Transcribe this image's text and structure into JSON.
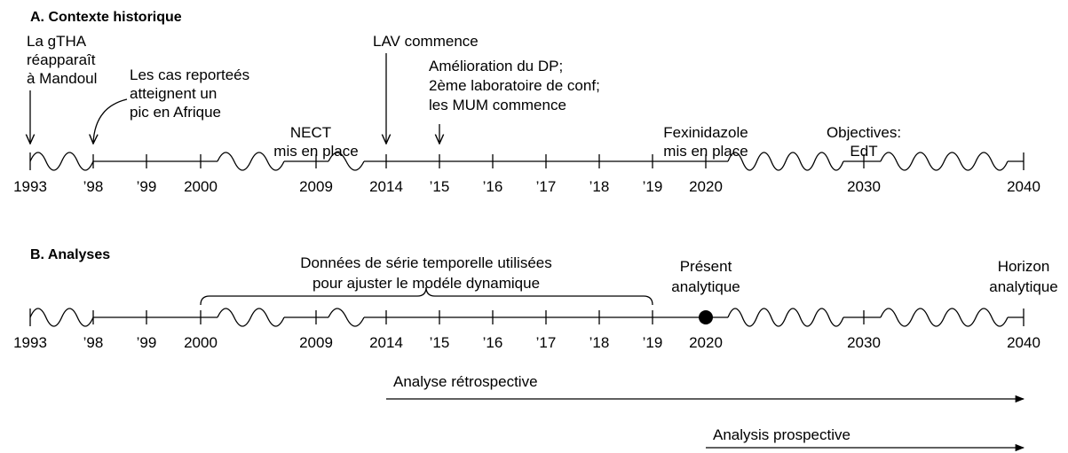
{
  "panel_a": {
    "title": "A. Contexte historique",
    "ticks": [
      "1993",
      "’98",
      "’99",
      "2000",
      "2009",
      "2014",
      "’15",
      "’16",
      "’17",
      "’18",
      "’19",
      "2020",
      "2030",
      "2040"
    ],
    "annotations": [
      {
        "lines": [
          "La gTHA",
          "réapparaît",
          "à Mandoul"
        ]
      },
      {
        "lines": [
          "Les cas reporteés",
          "atteignent un",
          "pic en Afrique"
        ]
      },
      {
        "lines": [
          "NECT",
          "mis en place"
        ]
      },
      {
        "lines": [
          "LAV commence"
        ]
      },
      {
        "lines": [
          "Amélioration du DP;",
          "2ème laboratoire de conf;",
          "les MUM commence"
        ]
      },
      {
        "lines": [
          "Fexinidazole",
          "mis en place"
        ]
      },
      {
        "lines": [
          "Objectives:",
          "EdT"
        ]
      }
    ]
  },
  "panel_b": {
    "title": "B. Analyses",
    "ticks": [
      "1993",
      "’98",
      "’99",
      "2000",
      "2009",
      "2014",
      "’15",
      "’16",
      "’17",
      "’18",
      "’19",
      "2020",
      "2030",
      "2040"
    ],
    "bracket_label": [
      "Données de série temporelle utilisées",
      "pour ajuster le modéle dynamique"
    ],
    "present_label": [
      "Présent",
      "analytique"
    ],
    "horizon_label": [
      "Horizon",
      "analytique"
    ],
    "arrows": [
      "Analyse rétrospective",
      "Analysis prospective"
    ]
  }
}
